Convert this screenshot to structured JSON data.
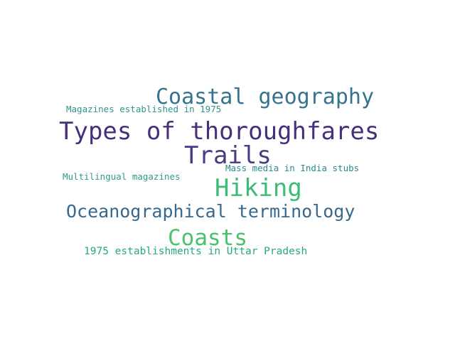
{
  "words": [
    {
      "text": "Types of thoroughfares",
      "color": "#472f7d"
    },
    {
      "text": "Coastal geography",
      "color": "#35738f"
    },
    {
      "text": "Trails",
      "color": "#433d84"
    },
    {
      "text": "Hiking",
      "color": "#3cbc75"
    },
    {
      "text": "Oceanographical terminology",
      "color": "#37698e"
    },
    {
      "text": "Coasts",
      "color": "#4ac16d"
    },
    {
      "text": "Magazines established in 1975",
      "color": "#2f958c"
    },
    {
      "text": "Mass media in India stubs",
      "color": "#2a8a8d"
    },
    {
      "text": "Multilingual magazines",
      "color": "#2f9a8a"
    },
    {
      "text": "1975 establishments in Uttar Pradesh",
      "color": "#27a883"
    }
  ]
}
